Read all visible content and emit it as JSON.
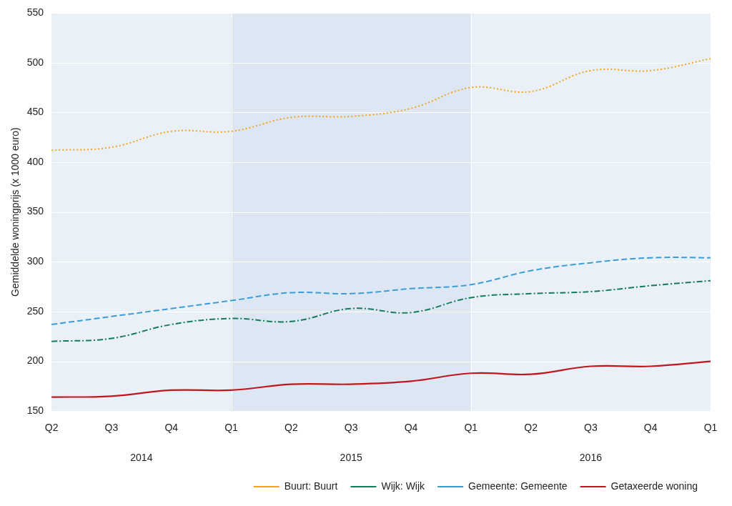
{
  "chart_data": {
    "type": "line",
    "y_label": "Gemiddelde woningprijs (x 1000 euro)",
    "categories": [
      "Q2",
      "Q3",
      "Q4",
      "Q1",
      "Q2",
      "Q3",
      "Q4",
      "Q1",
      "Q2",
      "Q3",
      "Q4",
      "Q1"
    ],
    "x_groups": [
      {
        "label": "2014",
        "start": 0,
        "end": 3
      },
      {
        "label": "2015",
        "start": 3,
        "end": 7
      },
      {
        "label": "2016",
        "start": 7,
        "end": 11
      }
    ],
    "series": [
      {
        "name": "Buurt: Buurt",
        "color": "#f5a31a",
        "line_style": "dotted",
        "values": [
          412,
          415,
          431,
          431,
          445,
          446,
          454,
          475,
          471,
          492,
          492,
          504
        ]
      },
      {
        "name": "Wijk: Wijk",
        "color": "#167a5c",
        "line_style": "dashdot",
        "values": [
          220,
          223,
          237,
          243,
          240,
          253,
          249,
          264,
          268,
          270,
          276,
          281
        ]
      },
      {
        "name": "Gemeente: Gemeente",
        "color": "#3c9dd6",
        "line_style": "dashed",
        "values": [
          237,
          245,
          253,
          261,
          269,
          268,
          273,
          277,
          291,
          299,
          304,
          304
        ]
      },
      {
        "name": "Getaxeerde woning",
        "color": "#c1161e",
        "line_style": "solid",
        "values": [
          164,
          165,
          171,
          171,
          177,
          177,
          180,
          188,
          187,
          195,
          195,
          200
        ]
      }
    ],
    "ylim": [
      150,
      550
    ],
    "yticks": [
      150,
      200,
      250,
      300,
      350,
      400,
      450,
      500,
      550
    ],
    "grid": true,
    "legend": "bottom-right"
  }
}
